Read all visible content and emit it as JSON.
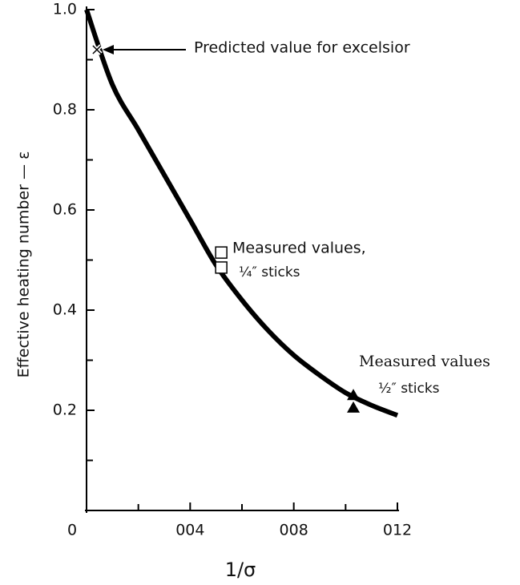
{
  "chart_data": {
    "type": "line",
    "xlabel": "1/σ",
    "ylabel": "Effective heating number — ε",
    "xlim": [
      0,
      0.012
    ],
    "ylim": [
      0,
      1
    ],
    "xticks": [
      0,
      {
        "value": 0.004,
        "label": "004"
      },
      {
        "value": 0.008,
        "label": "008"
      },
      {
        "value": 0.012,
        "label": "012"
      }
    ],
    "yticks": [
      0.2,
      0.4,
      0.6,
      0.8,
      {
        "value": 1,
        "label": "1.0"
      }
    ],
    "xminor_ticks": [
      0.002,
      0.006,
      0.01
    ],
    "yminor_ticks": [
      0.1,
      0.3,
      0.5,
      0.7,
      0.9
    ],
    "series": [
      {
        "marker": "line",
        "color": "#000",
        "x": [
          0,
          0.001,
          0.002,
          0.003,
          0.004,
          0.005,
          0.006,
          0.007,
          0.008,
          0.009,
          0.01,
          0.011,
          0.012
        ],
        "values": [
          1,
          0.85,
          0.76,
          0.67,
          0.58,
          0.49,
          0.42,
          0.36,
          0.31,
          0.27,
          0.235,
          0.21,
          0.19
        ]
      },
      {
        "marker": "x",
        "color": "#000",
        "x": [
          0.0004
        ],
        "values": [
          0.92
        ]
      },
      {
        "marker": "square",
        "color": "#000",
        "x": [
          0.0052,
          0.0052
        ],
        "values": [
          0.515,
          0.485
        ]
      },
      {
        "marker": "triangle",
        "color": "#000",
        "x": [
          0.0103,
          0.0103
        ],
        "values": [
          0.23,
          0.205
        ]
      }
    ],
    "annotations": [
      {
        "lines": [
          "Predicted value for excelsior"
        ]
      },
      {
        "lines": [
          "Measured values,",
          "¼″ sticks"
        ]
      },
      {
        "lines": [
          "Measured values",
          "½″ sticks"
        ]
      }
    ]
  }
}
